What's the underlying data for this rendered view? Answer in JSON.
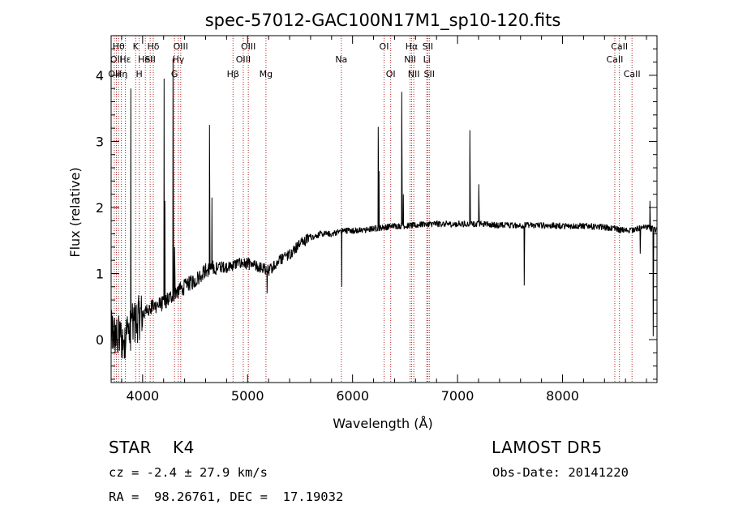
{
  "chart_data": {
    "type": "line",
    "title": "spec-57012-GAC100N17M1_sp10-120.fits",
    "xlabel": "Wavelength (Å)",
    "ylabel": "Flux (relative)",
    "xlim": [
      3700,
      8900
    ],
    "ylim": [
      -0.65,
      4.6
    ],
    "xticks": [
      4000,
      5000,
      6000,
      7000,
      8000
    ],
    "yticks": [
      0,
      1,
      2,
      3,
      4
    ],
    "grid": false,
    "line_color": "#000000",
    "marker_color": "#b22222",
    "continuum": {
      "x": [
        3700,
        3800,
        3900,
        4000,
        4100,
        4200,
        4300,
        4400,
        4500,
        4600,
        4700,
        4800,
        4900,
        5000,
        5100,
        5200,
        5300,
        5400,
        5500,
        5600,
        5700,
        5800,
        5900,
        6000,
        6100,
        6200,
        6300,
        6400,
        6500,
        6600,
        6700,
        6800,
        6900,
        7000,
        7200,
        7400,
        7600,
        7800,
        8000,
        8200,
        8400,
        8600,
        8800,
        8900
      ],
      "y": [
        0.1,
        0.0,
        0.2,
        0.4,
        0.5,
        0.55,
        0.7,
        0.8,
        0.9,
        1.05,
        1.1,
        1.1,
        1.15,
        1.15,
        1.1,
        1.05,
        1.2,
        1.3,
        1.45,
        1.55,
        1.6,
        1.6,
        1.65,
        1.65,
        1.65,
        1.68,
        1.7,
        1.72,
        1.72,
        1.73,
        1.75,
        1.75,
        1.75,
        1.75,
        1.75,
        1.73,
        1.73,
        1.73,
        1.72,
        1.72,
        1.7,
        1.65,
        1.7,
        1.65
      ]
    },
    "features": [
      {
        "x": 3886,
        "y": 3.8
      },
      {
        "x": 4200,
        "y": 3.95
      },
      {
        "x": 4209,
        "y": 2.1
      },
      {
        "x": 4290,
        "y": 4.25
      },
      {
        "x": 4300,
        "y": 1.4
      },
      {
        "x": 4635,
        "y": 3.25
      },
      {
        "x": 4660,
        "y": 2.15
      },
      {
        "x": 5180,
        "y": 0.7
      },
      {
        "x": 5895,
        "y": 0.8
      },
      {
        "x": 6243,
        "y": 3.22
      },
      {
        "x": 6253,
        "y": 2.55
      },
      {
        "x": 6466,
        "y": 3.75
      },
      {
        "x": 6480,
        "y": 2.2
      },
      {
        "x": 7115,
        "y": 3.17
      },
      {
        "x": 7200,
        "y": 2.35
      },
      {
        "x": 7630,
        "y": 0.82
      },
      {
        "x": 8735,
        "y": 1.3
      },
      {
        "x": 8830,
        "y": 2.1
      },
      {
        "x": 8860,
        "y": 0.05
      }
    ],
    "spectral_lines": [
      {
        "x": 3730,
        "label": "OII",
        "row": 2
      },
      {
        "x": 3750,
        "label": "OII",
        "row": 1
      },
      {
        "x": 3771,
        "label": "Hθ",
        "row": 0
      },
      {
        "x": 3798,
        "label": "Hη",
        "row": 2
      },
      {
        "x": 3835,
        "label": "Hε",
        "row": 1
      },
      {
        "x": 3934,
        "label": "K",
        "row": 0
      },
      {
        "x": 3968,
        "label": "H",
        "row": 2
      },
      {
        "x": 4026,
        "label": "HeI",
        "row": 1
      },
      {
        "x": 4072,
        "label": "SII",
        "row": 1
      },
      {
        "x": 4102,
        "label": "Hδ",
        "row": 0
      },
      {
        "x": 4304,
        "label": "G",
        "row": 2
      },
      {
        "x": 4340,
        "label": "Hγ",
        "row": 1
      },
      {
        "x": 4363,
        "label": "OIII",
        "row": 0
      },
      {
        "x": 4861,
        "label": "Hβ",
        "row": 2
      },
      {
        "x": 4959,
        "label": "OIII",
        "row": 1
      },
      {
        "x": 5007,
        "label": "OIII",
        "row": 0
      },
      {
        "x": 5175,
        "label": "Mg",
        "row": 2
      },
      {
        "x": 5893,
        "label": "Na",
        "row": 1
      },
      {
        "x": 6300,
        "label": "OI",
        "row": 0
      },
      {
        "x": 6363,
        "label": "OI",
        "row": 2
      },
      {
        "x": 6548,
        "label": "NII",
        "row": 1
      },
      {
        "x": 6563,
        "label": "Hα",
        "row": 0
      },
      {
        "x": 6583,
        "label": "NII",
        "row": 2
      },
      {
        "x": 6707,
        "label": "Li",
        "row": 1
      },
      {
        "x": 6716,
        "label": "SII",
        "row": 0
      },
      {
        "x": 6731,
        "label": "SII",
        "row": 2
      },
      {
        "x": 8498,
        "label": "CaII",
        "row": 1
      },
      {
        "x": 8542,
        "label": "CaII",
        "row": 0
      },
      {
        "x": 8662,
        "label": "CaII",
        "row": 2
      }
    ]
  },
  "info": {
    "object_class": "STAR",
    "subclass": "K4",
    "survey": "LAMOST DR5",
    "cz": "cz = -2.4 ± 27.9 km/s",
    "obs_date": "Obs-Date: 20141220",
    "coords": "RA =  98.26761, DEC =  17.19032"
  }
}
